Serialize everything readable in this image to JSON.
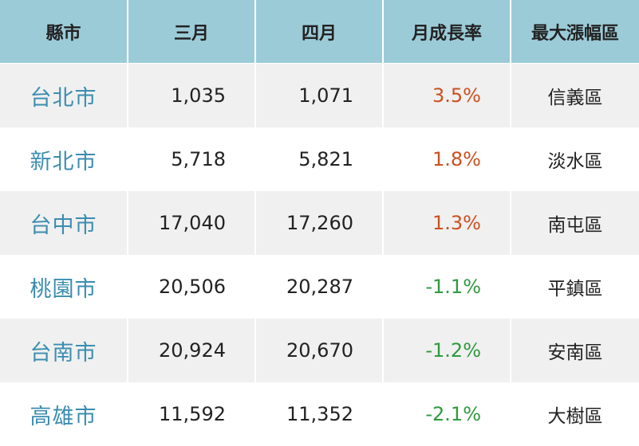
{
  "table": {
    "header": [
      "縣市",
      "三月",
      "四月",
      "月成長率",
      "最大漲幅區"
    ],
    "rows": [
      [
        "台北市",
        "1,035",
        "1,071",
        "3.5%",
        "信義區"
      ],
      [
        "新北市",
        "5,718",
        "5,821",
        "1.8%",
        "淡水區"
      ],
      [
        "台中市",
        "17,040",
        "17,260",
        "1.3%",
        "南屯區"
      ],
      [
        "桃園市",
        "20,506",
        "20,287",
        "-1.1%",
        "平鎮區"
      ],
      [
        "台南市",
        "20,924",
        "20,670",
        "-1.2%",
        "安南區"
      ],
      [
        "高雄市",
        "11,592",
        "11,352",
        "-2.1%",
        "大樹區"
      ]
    ]
  }
}
